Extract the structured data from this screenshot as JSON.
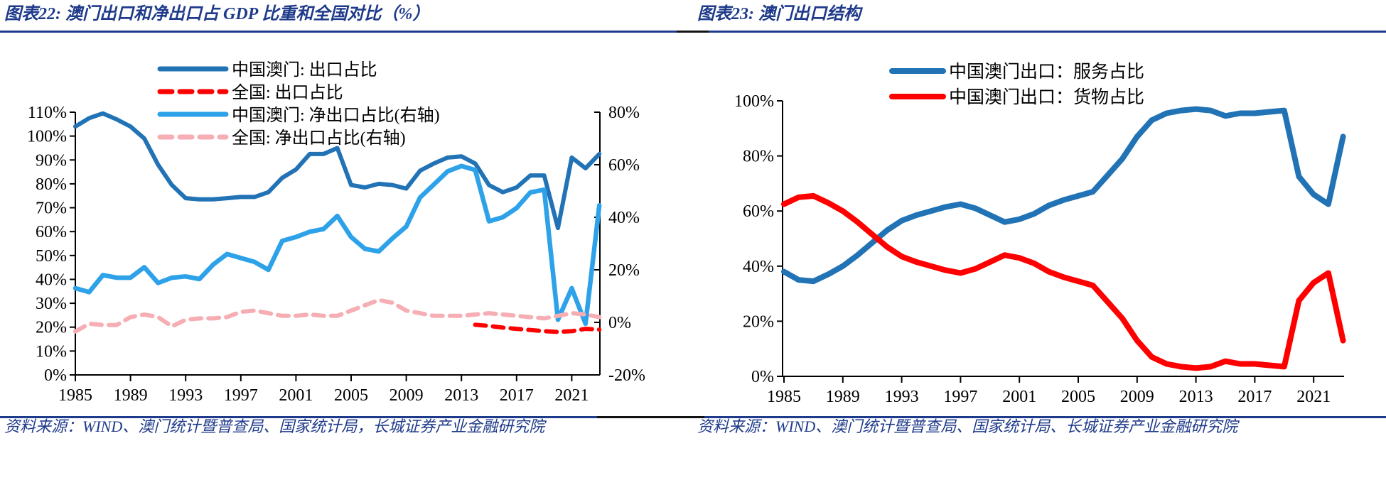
{
  "colors": {
    "navy": "#1e3a8a",
    "macau_blue": "#2173b6",
    "bright_red": "#fe0000",
    "net_light_blue": "#2ea2e9",
    "net_pink": "#f6aeb4",
    "axis_black": "#000000"
  },
  "charts": [
    {
      "title": "图表22:  澳门出口和净出口占 GDP 比重和全国对比（%）",
      "source": "资料来源：WIND、澳门统计暨普查局、国家统计局，长城证券产业金融研究院"
    },
    {
      "title": "图表23:  澳门出口结构",
      "source": "资料来源：WIND、澳门统计暨普查局、国家统计局、长城证券产业金融研究院"
    }
  ],
  "chart_data": [
    {
      "type": "line",
      "title": "澳门出口和净出口占GDP比重和全国对比（%）",
      "x": [
        1985,
        1986,
        1987,
        1988,
        1989,
        1990,
        1991,
        1992,
        1993,
        1994,
        1995,
        1996,
        1997,
        1998,
        1999,
        2000,
        2001,
        2002,
        2003,
        2004,
        2005,
        2006,
        2007,
        2008,
        2009,
        2010,
        2011,
        2012,
        2013,
        2014,
        2015,
        2016,
        2017,
        2018,
        2019,
        2020,
        2021,
        2022,
        2023
      ],
      "x_ticks": [
        1985,
        1989,
        1993,
        1997,
        2001,
        2005,
        2009,
        2013,
        2017,
        2021
      ],
      "y_left": {
        "min": 0,
        "max": 110,
        "step": 10,
        "suffix": "%"
      },
      "y_right": {
        "min": -20,
        "max": 80,
        "step": 20,
        "suffix": "%",
        "label": "右轴"
      },
      "grid": false,
      "legend_position": "top-left",
      "series": [
        {
          "name": "中国澳门: 出口占比",
          "axis": "left",
          "color": "#2173b6",
          "dashed": false,
          "stroke_width": 6,
          "values": [
            104,
            107.5,
            109.5,
            107,
            104,
            99,
            88,
            79.5,
            74,
            73.5,
            73.5,
            74,
            74.5,
            74.5,
            76.5,
            82.5,
            86,
            92.5,
            92.5,
            95,
            79.5,
            78.5,
            80,
            79.5,
            78,
            85.5,
            88.5,
            91,
            91.5,
            88.5,
            79.5,
            76.5,
            78.5,
            83.5,
            83.5,
            61.5,
            91,
            86.5,
            92.5
          ]
        },
        {
          "name": "全国: 出口占比",
          "axis": "left",
          "color": "#fe0000",
          "dashed": true,
          "stroke_width": 6,
          "values": [
            null,
            null,
            null,
            null,
            null,
            null,
            null,
            null,
            null,
            null,
            null,
            null,
            null,
            null,
            null,
            null,
            null,
            null,
            null,
            null,
            null,
            null,
            null,
            null,
            null,
            null,
            null,
            null,
            null,
            21,
            20.5,
            19.8,
            19.3,
            18.8,
            18.3,
            18,
            18.3,
            19.3,
            19
          ]
        },
        {
          "name": "中国澳门: 净出口占比(右轴)",
          "axis": "right",
          "color": "#2ea2e9",
          "dashed": false,
          "stroke_width": 6.5,
          "values": [
            13,
            11.5,
            18,
            17,
            17,
            21,
            15,
            17,
            17.5,
            16.5,
            22,
            26,
            24.5,
            23,
            20,
            31,
            32.5,
            34.5,
            35.5,
            40.5,
            32.5,
            28,
            27,
            32,
            36.5,
            47.5,
            52.5,
            57.5,
            59.5,
            58,
            38.5,
            40,
            43.5,
            49.5,
            50.5,
            1,
            13,
            -0.5,
            44.5
          ]
        },
        {
          "name": "全国: 净出口占比(右轴)",
          "axis": "right",
          "color": "#f6aeb4",
          "dashed": true,
          "stroke_width": 6,
          "values": [
            -3.5,
            -0.5,
            -1,
            -1,
            2,
            3,
            2,
            -1.5,
            1,
            1.5,
            1.5,
            2,
            4,
            4.5,
            3.5,
            2.5,
            2.5,
            3,
            2.5,
            2.5,
            4.5,
            6.5,
            8.5,
            7.5,
            4.5,
            3.5,
            2.5,
            2.5,
            2.5,
            3,
            3.5,
            3,
            2.5,
            2,
            1.5,
            2.5,
            3.5,
            3,
            2
          ]
        }
      ]
    },
    {
      "type": "line",
      "title": "澳门出口结构",
      "x": [
        1985,
        1986,
        1987,
        1988,
        1989,
        1990,
        1991,
        1992,
        1993,
        1994,
        1995,
        1996,
        1997,
        1998,
        1999,
        2000,
        2001,
        2002,
        2003,
        2004,
        2005,
        2006,
        2007,
        2008,
        2009,
        2010,
        2011,
        2012,
        2013,
        2014,
        2015,
        2016,
        2017,
        2018,
        2019,
        2020,
        2021,
        2022,
        2023
      ],
      "x_ticks": [
        1985,
        1989,
        1993,
        1997,
        2001,
        2005,
        2009,
        2013,
        2017,
        2021
      ],
      "y_left": {
        "min": 0,
        "max": 100,
        "step": 20,
        "suffix": "%"
      },
      "grid": false,
      "legend_position": "top",
      "series": [
        {
          "name": "中国澳门出口：服务占比",
          "axis": "left",
          "color": "#2173b6",
          "dashed": false,
          "stroke_width": 8,
          "values": [
            38,
            35,
            34.5,
            37,
            40,
            44,
            48.5,
            53,
            56.5,
            58.5,
            60,
            61.5,
            62.5,
            61,
            58.5,
            56,
            57,
            59,
            62,
            64,
            65.5,
            67,
            73,
            79,
            87,
            93,
            95.5,
            96.5,
            97,
            96.5,
            94.5,
            95.5,
            95.5,
            96,
            96.5,
            72.5,
            66,
            62.5,
            87
          ]
        },
        {
          "name": "中国澳门出口：货物占比",
          "axis": "left",
          "color": "#fe0000",
          "dashed": false,
          "stroke_width": 8,
          "values": [
            62.5,
            65,
            65.5,
            63,
            60,
            56,
            51.5,
            47,
            43.5,
            41.5,
            40,
            38.5,
            37.5,
            39,
            41.5,
            44,
            43,
            41,
            38,
            36,
            34.5,
            33,
            27,
            21,
            13,
            7,
            4.5,
            3.5,
            3,
            3.5,
            5.5,
            4.5,
            4.5,
            4,
            3.5,
            27.5,
            34,
            37.5,
            13
          ]
        }
      ]
    }
  ]
}
